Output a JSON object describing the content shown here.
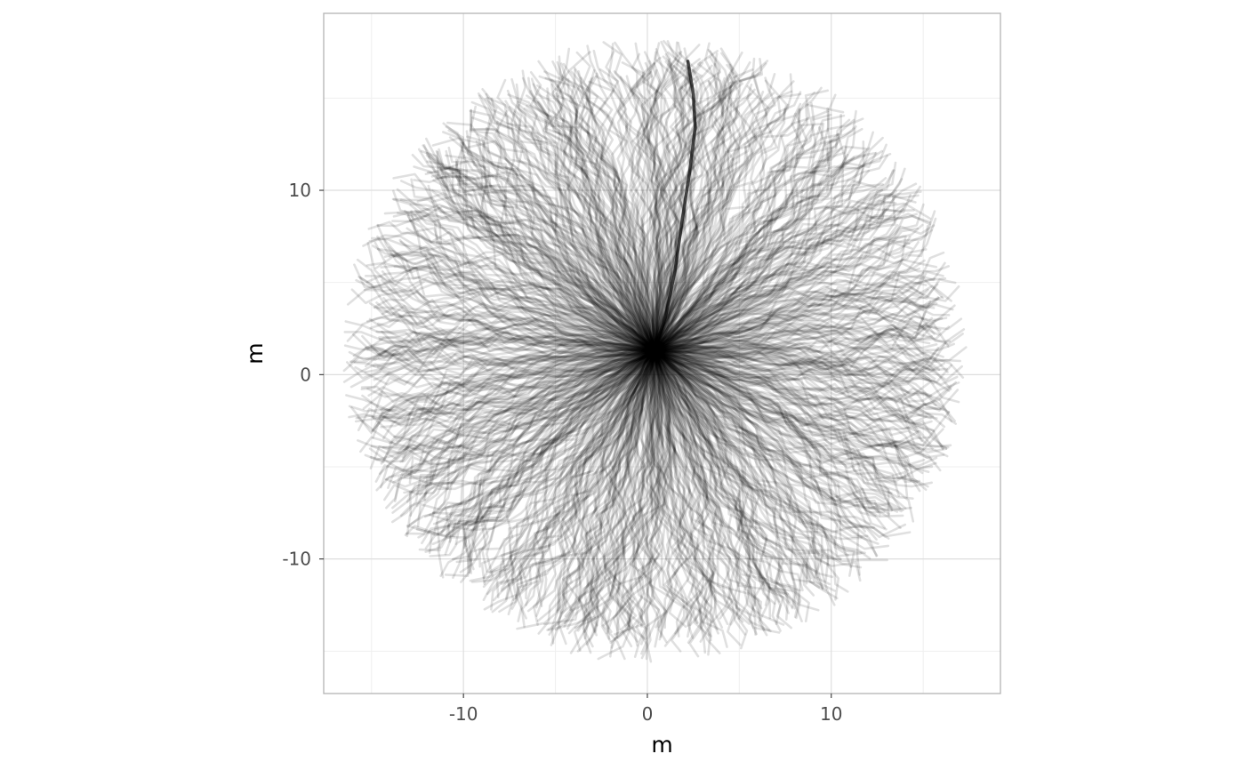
{
  "chart_data": {
    "type": "line",
    "title": "",
    "xlabel": "m",
    "ylabel": "m",
    "xlim": [
      -17.6,
      19.2
    ],
    "ylim": [
      -17.3,
      19.6
    ],
    "x_ticks": [
      -10,
      0,
      10
    ],
    "x_tick_labels": [
      "-10",
      "0",
      "10"
    ],
    "y_ticks": [
      -10,
      0,
      10
    ],
    "y_tick_labels": [
      "-10",
      "0",
      "10"
    ],
    "x_minor_breaks": [
      -15,
      -5,
      5,
      15
    ],
    "y_minor_breaks": [
      -15,
      -5,
      5,
      15
    ],
    "grid": true,
    "aspect": "equal",
    "description_of_series": "radial random-walk tracks from a common origin",
    "origin": [
      0.4,
      1.3
    ],
    "track_count": 900,
    "reach_radius": 16.5,
    "track_opacity": 0.12,
    "highlight_track": {
      "points": [
        [
          0.4,
          1.3
        ],
        [
          1.0,
          3.2
        ],
        [
          1.5,
          5.6
        ],
        [
          1.9,
          8.4
        ],
        [
          2.3,
          11.0
        ],
        [
          2.6,
          13.4
        ],
        [
          2.5,
          15.2
        ],
        [
          2.2,
          17.0
        ]
      ],
      "opacity": 0.7
    },
    "colors": {
      "background": "#ffffff",
      "panel_border": "#b3b3b3",
      "grid_major": "#dedede",
      "grid_minor": "#efefef",
      "track": "#000000"
    }
  }
}
